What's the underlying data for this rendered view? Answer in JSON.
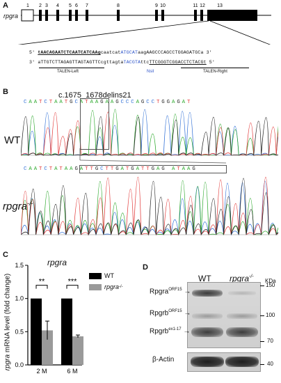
{
  "panels": {
    "A": "A",
    "B": "B",
    "C": "C",
    "D": "D"
  },
  "panelA": {
    "gene": "rpgra",
    "exons": [
      "1",
      "2",
      "3",
      "4",
      "5",
      "6",
      "7",
      "8",
      "9",
      "10",
      "11",
      "12",
      "13"
    ],
    "seq_top": {
      "prefix": "5'",
      "talen_left": "tAACAGAATCTCAATCATCAAg",
      "spacer1": "caatcat",
      "nsi": "ATGCAT",
      "spacer2": "aag",
      "talen_right": "AAGCCCAGCCTGGAGATGCa",
      "suffix": "3'"
    },
    "seq_bottom": {
      "prefix": "3'",
      "left": "aTTGTCTTAGAGTTAGTAGTTCcgttagta",
      "nsi": "TACGTA",
      "mid": "ttc",
      "right": "TTCGGGTCGGACCTCTACGt",
      "suffix": "5'"
    },
    "labels": {
      "talen_left": "TALEN-Left",
      "nsi": "NsiI",
      "talen_right": "TALEN-Right"
    }
  },
  "panelB": {
    "mutation": "c.1675_1678delins21",
    "wt_label": "WT",
    "mut_label": "rpgra",
    "mut_sup": "-/-",
    "wt_bases": "CAATCTAATGCATAAGAAGCCCAGCCTGGAGAT",
    "mut_bases": "CAATCTATAAGATTGCTTGATGATTGAG ATAAG",
    "wt_colors": [
      "#2f6fd6",
      "#2aa82a",
      "#e23b3b",
      "#222"
    ],
    "mut_colors": [
      "#2f6fd6",
      "#2aa82a",
      "#e23b3b",
      "#222"
    ]
  },
  "chart_data": {
    "type": "bar",
    "title": "rpgra",
    "ylabel": "rpgra mRNA level (fold change)",
    "categories": [
      "2 M",
      "6 M"
    ],
    "ylim": [
      0,
      1.5
    ],
    "yticks": [
      "0.0",
      "0.5",
      "1.0",
      "1.5"
    ],
    "series": [
      {
        "name": "WT",
        "color": "#000000",
        "values": [
          1.0,
          1.0
        ],
        "err": [
          0,
          0
        ]
      },
      {
        "name": "rpgra-/-",
        "color": "#9a9a9a",
        "values": [
          0.52,
          0.43
        ],
        "err": [
          0.14,
          0.02
        ]
      }
    ],
    "significance": [
      "**",
      "***"
    ],
    "legend": {
      "wt": "WT",
      "mut": "rpgra",
      "mut_sup": "-/-"
    }
  },
  "panelD": {
    "col_wt": "WT",
    "col_mut": "rpgra",
    "col_mut_sup": "-/-",
    "kda": "KDa",
    "markers": [
      "150",
      "100",
      "70",
      "40"
    ],
    "bands": [
      {
        "name": "Rpgra",
        "sup": "ORF15"
      },
      {
        "name": "Rpgrb",
        "sup": "ORF15"
      },
      {
        "name": "Rpgrb",
        "sup": "ex1-17"
      }
    ],
    "actin": "β-Actin"
  }
}
